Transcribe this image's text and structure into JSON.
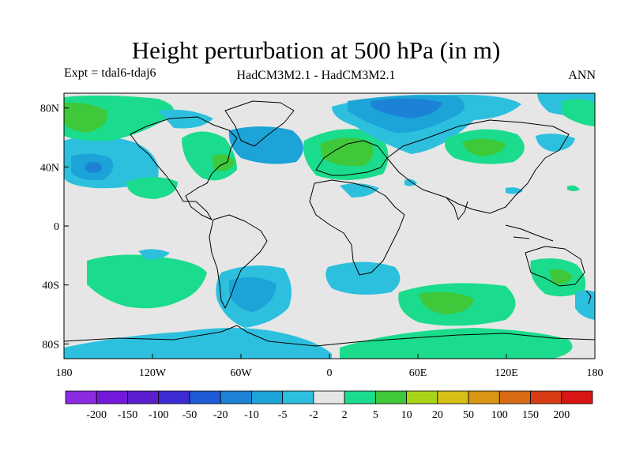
{
  "title": "Height perturbation at 500 hPa (in m)",
  "subtitle_left": "Expt = tdal6-tdaj6",
  "subtitle_center": "HadCM3M2.1 - HadCM3M2.1",
  "subtitle_right": "ANN",
  "axes": {
    "lat_ticks": [
      {
        "value": 80,
        "label": "80N"
      },
      {
        "value": 40,
        "label": "40N"
      },
      {
        "value": 0,
        "label": "0"
      },
      {
        "value": -40,
        "label": "40S"
      },
      {
        "value": -80,
        "label": "80S"
      }
    ],
    "lon_ticks": [
      {
        "value": -180,
        "label": "180"
      },
      {
        "value": -120,
        "label": "120W"
      },
      {
        "value": -60,
        "label": "60W"
      },
      {
        "value": 0,
        "label": "0"
      },
      {
        "value": 60,
        "label": "60E"
      },
      {
        "value": 120,
        "label": "120E"
      },
      {
        "value": 180,
        "label": "180"
      }
    ],
    "lon_range": [
      -180,
      180
    ],
    "lat_range": [
      -90,
      90
    ]
  },
  "colorbar": {
    "colors": [
      "#8a2be2",
      "#7318d8",
      "#5a1ecd",
      "#3b2bd0",
      "#1f5ad6",
      "#1c82d6",
      "#1ca3d8",
      "#2cc0de",
      "#e6e6e6",
      "#1adc8c",
      "#3ec83a",
      "#a8d418",
      "#d6c014",
      "#d89614",
      "#d86a14",
      "#d83c14",
      "#d81414"
    ],
    "labels": [
      "-200",
      "-150",
      "-100",
      "-50",
      "-20",
      "-10",
      "-5",
      "-2",
      "2",
      "5",
      "10",
      "20",
      "50",
      "100",
      "150",
      "200"
    ]
  },
  "map_colors": {
    "background": "#e6e6e6",
    "cyan": "#2cc0de",
    "blue": "#1ca3d8",
    "dark_blue": "#1c82d6",
    "green": "#1adc8c",
    "bright_green": "#3ec83a",
    "coast": "#000000"
  }
}
